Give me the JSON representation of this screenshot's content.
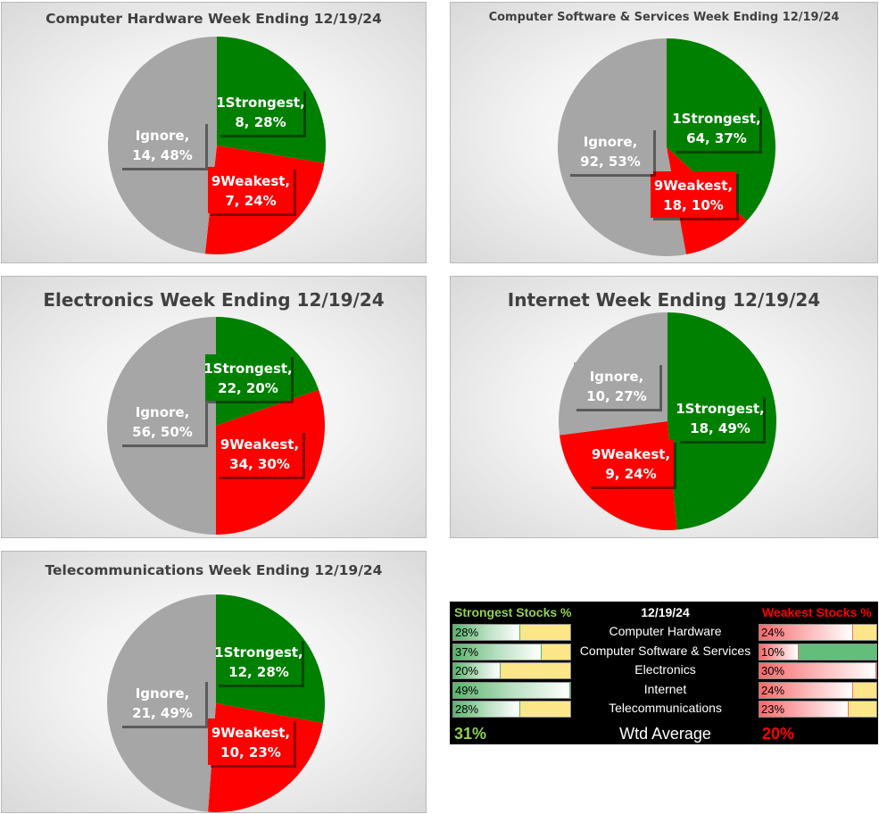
{
  "colors": {
    "strongest": "#008000",
    "weakest": "#ff0000",
    "ignore": "#a6a6a6",
    "summary_green": "#92d050",
    "summary_red": "#ff0000"
  },
  "chart_data": [
    {
      "type": "pie",
      "title": "Computer Hardware Week Ending 12/19/24",
      "slices": [
        {
          "name": "1Strongest",
          "value": 8,
          "pct": "28%"
        },
        {
          "name": "9Weakest",
          "value": 7,
          "pct": "24%"
        },
        {
          "name": "Ignore",
          "value": 14,
          "pct": "48%"
        }
      ]
    },
    {
      "type": "pie",
      "title": "Computer Software & Services Week Ending 12/19/24",
      "slices": [
        {
          "name": "1Strongest",
          "value": 64,
          "pct": "37%"
        },
        {
          "name": "9Weakest",
          "value": 18,
          "pct": "10%"
        },
        {
          "name": "Ignore",
          "value": 92,
          "pct": "53%"
        }
      ]
    },
    {
      "type": "pie",
      "title": "Electronics Week Ending 12/19/24",
      "slices": [
        {
          "name": "1Strongest",
          "value": 22,
          "pct": "20%"
        },
        {
          "name": "9Weakest",
          "value": 34,
          "pct": "30%"
        },
        {
          "name": "Ignore",
          "value": 56,
          "pct": "50%"
        }
      ]
    },
    {
      "type": "pie",
      "title": "Internet Week Ending 12/19/24",
      "slices": [
        {
          "name": "1Strongest",
          "value": 18,
          "pct": "49%"
        },
        {
          "name": "9Weakest",
          "value": 9,
          "pct": "24%"
        },
        {
          "name": "Ignore",
          "value": 10,
          "pct": "27%"
        }
      ]
    },
    {
      "type": "pie",
      "title": "Telecommunications Week Ending 12/19/24",
      "slices": [
        {
          "name": "1Strongest",
          "value": 12,
          "pct": "28%"
        },
        {
          "name": "9Weakest",
          "value": 10,
          "pct": "23%"
        },
        {
          "name": "Ignore",
          "value": 21,
          "pct": "49%"
        }
      ]
    },
    {
      "type": "table",
      "header": {
        "left": "Strongest Stocks %",
        "date": "12/19/24",
        "right": "Weakest Stocks %"
      },
      "rows": [
        {
          "sector": "Computer Hardware",
          "strongest": "28%",
          "weakest": "24%",
          "s": 0.28,
          "w": 0.24
        },
        {
          "sector": "Computer Software & Services",
          "strongest": "37%",
          "weakest": "10%",
          "s": 0.37,
          "w": 0.1
        },
        {
          "sector": "Electronics",
          "strongest": "20%",
          "weakest": "30%",
          "s": 0.2,
          "w": 0.3
        },
        {
          "sector": "Internet",
          "strongest": "49%",
          "weakest": "24%",
          "s": 0.49,
          "w": 0.24
        },
        {
          "sector": "Telecommunications",
          "strongest": "28%",
          "weakest": "23%",
          "s": 0.28,
          "w": 0.23
        }
      ],
      "footer": {
        "strongest": "31%",
        "label": "Wtd Average",
        "weakest": "20%"
      }
    }
  ]
}
